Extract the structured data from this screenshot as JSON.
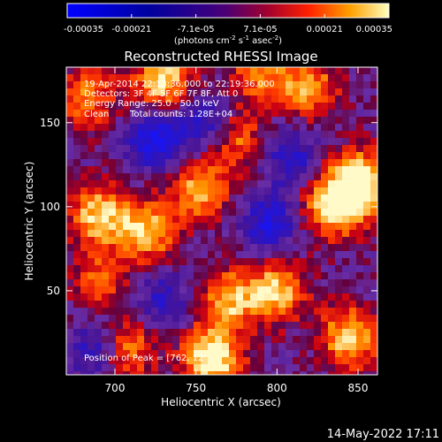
{
  "chart_data": {
    "type": "heatmap",
    "title": "Reconstructed RHESSI Image",
    "xlabel": "Heliocentric X (arcsec)",
    "ylabel": "Heliocentric Y (arcsec)",
    "xlim": [
      670,
      862
    ],
    "ylim": [
      0,
      183
    ],
    "x_ticks": [
      700,
      750,
      800,
      850
    ],
    "y_ticks": [
      50,
      100,
      150
    ],
    "colorbar": {
      "range": [
        -0.00035,
        0.00035
      ],
      "tick_labels": [
        "-0.00035",
        "-0.00021",
        "-7.1e-05",
        "7.1e-05",
        "0.00021",
        "0.00035"
      ],
      "unit_prefix": "(photons cm",
      "unit_mid": " s",
      "unit_mid2": " asec",
      "unit_suffix": ")",
      "sup1": "-2",
      "sup2": "-1",
      "sup3": "-2"
    },
    "annotations": {
      "time": "19-Apr-2014 22:13:36.000 to 22:19:36.000",
      "detectors": "Detectors: 3F 4F 5F 6F 7F 8F, Att 0",
      "energy": "Energy Range: 25.0 - 50.0 keV",
      "method": "Clean",
      "total_counts": "Total counts: 1.28E+04",
      "peak_prefix": "Position of Peak = [",
      "peak_value": "762, 12"
    },
    "peak": [
      762,
      12
    ],
    "hotspots": [
      {
        "x": 760,
        "y": 10,
        "amp": 1.0
      },
      {
        "x": 730,
        "y": 175,
        "amp": 0.85
      },
      {
        "x": 850,
        "y": 115,
        "amp": 0.95
      },
      {
        "x": 835,
        "y": 100,
        "amp": 0.85
      },
      {
        "x": 690,
        "y": 95,
        "amp": 0.8
      },
      {
        "x": 720,
        "y": 85,
        "amp": 0.75
      },
      {
        "x": 752,
        "y": 110,
        "amp": 0.7
      },
      {
        "x": 705,
        "y": 15,
        "amp": 0.75
      },
      {
        "x": 845,
        "y": 22,
        "amp": 0.8
      },
      {
        "x": 770,
        "y": 45,
        "amp": 0.7
      },
      {
        "x": 800,
        "y": 50,
        "amp": 0.75
      },
      {
        "x": 820,
        "y": 170,
        "amp": 0.65
      },
      {
        "x": 790,
        "y": 180,
        "amp": 0.6
      },
      {
        "x": 682,
        "y": 165,
        "amp": 0.6
      },
      {
        "x": 775,
        "y": 140,
        "amp": 0.55
      },
      {
        "x": 690,
        "y": 55,
        "amp": 0.5
      }
    ],
    "coldspots": [
      {
        "x": 725,
        "y": 140,
        "amp": 0.8
      },
      {
        "x": 690,
        "y": 15,
        "amp": 0.7
      },
      {
        "x": 795,
        "y": 90,
        "amp": 0.7
      },
      {
        "x": 755,
        "y": 150,
        "amp": 0.6
      },
      {
        "x": 808,
        "y": 130,
        "amp": 0.6
      },
      {
        "x": 730,
        "y": 45,
        "amp": 0.5
      }
    ]
  },
  "footer": {
    "timestamp": "14-May-2022 17:11"
  }
}
